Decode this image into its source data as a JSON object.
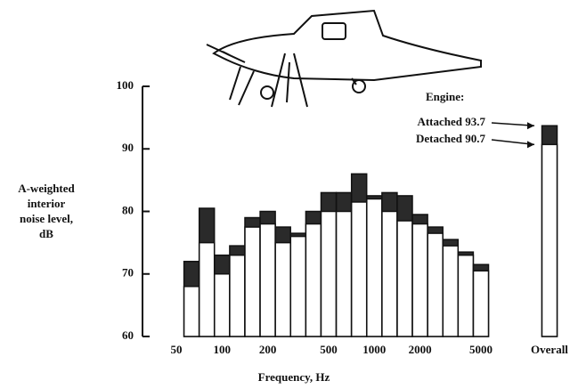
{
  "chart_data": {
    "type": "bar",
    "x_label": "Frequency, Hz",
    "y_label": [
      "A-weighted",
      "interior",
      "noise level,",
      "dB"
    ],
    "legend_title": "Engine:",
    "categories": [
      "50",
      null,
      null,
      "100",
      null,
      null,
      "200",
      null,
      null,
      null,
      "500",
      null,
      null,
      "1000",
      null,
      null,
      "2000",
      null,
      null,
      null,
      "5000",
      "Overall"
    ],
    "series": [
      {
        "name": "Attached",
        "color": "#2a2a2a",
        "values": [
          null,
          72,
          80.5,
          73,
          74.5,
          79,
          80,
          77.5,
          76.5,
          80,
          83,
          83,
          86,
          82.5,
          83,
          82.5,
          79.5,
          77.5,
          75.5,
          73.5,
          71.5,
          93.7
        ]
      },
      {
        "name": "Detached",
        "color": "#ffffff",
        "values": [
          null,
          68,
          75,
          70,
          73,
          77.5,
          78,
          75,
          76,
          78,
          80,
          80,
          81.5,
          82,
          80,
          78.5,
          78,
          76.5,
          74.5,
          73,
          70.5,
          90.7
        ]
      }
    ],
    "ylim": [
      60,
      100
    ],
    "yticks": [
      60,
      70,
      80,
      90,
      100
    ]
  }
}
